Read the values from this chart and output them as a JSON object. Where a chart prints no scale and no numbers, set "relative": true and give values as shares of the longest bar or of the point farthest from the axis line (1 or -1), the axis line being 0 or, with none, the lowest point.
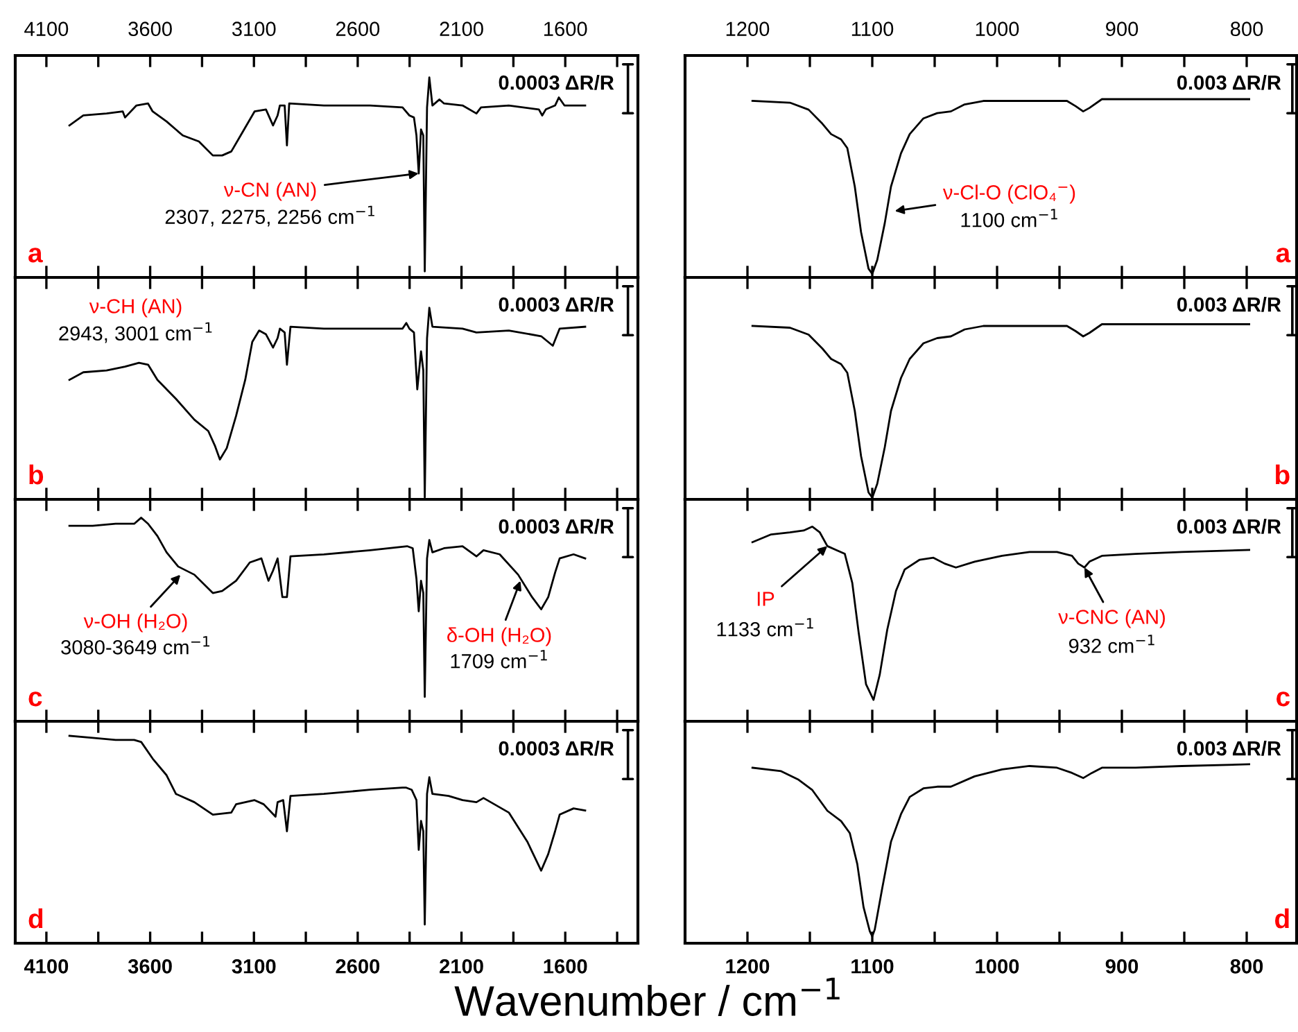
{
  "chart_data": [
    {
      "type": "line",
      "relative": true,
      "tick_labels": "x",
      "xlim": [
        4250,
        1250
      ],
      "xticks": [
        4100,
        {
          "value": 3850,
          "label": null
        },
        3600,
        {
          "value": 3350,
          "label": null
        },
        3100,
        {
          "value": 2850,
          "label": null
        },
        2600,
        {
          "value": 2350,
          "label": null
        },
        2100,
        {
          "value": 1850,
          "label": null
        },
        1600,
        {
          "value": 1350,
          "label": null
        }
      ],
      "x": [
        3989,
        3922,
        3810,
        3732,
        3721,
        3666,
        3610,
        3588,
        3521,
        3443,
        3365,
        3298,
        3253,
        3209,
        3164,
        3097,
        3042,
        3008,
        2986,
        2975,
        2952,
        2941,
        2930,
        2763,
        2540,
        2384,
        2351,
        2329,
        2317,
        2306,
        2295,
        2284,
        2277,
        2266,
        2255,
        2240,
        2206,
        2184,
        2095,
        2028,
        2006,
        1872,
        1727,
        1711,
        1694,
        1649,
        1631,
        1604,
        1504
      ],
      "series": [
        {
          "color": "#000000",
          "values": [
            0.76,
            0.81,
            0.82,
            0.83,
            0.8,
            0.86,
            0.87,
            0.83,
            0.78,
            0.71,
            0.68,
            0.61,
            0.61,
            0.63,
            0.71,
            0.83,
            0.84,
            0.76,
            0.81,
            0.86,
            0.86,
            0.66,
            0.87,
            0.86,
            0.86,
            0.85,
            0.81,
            0.8,
            0.71,
            0.52,
            0.74,
            0.71,
            0.03,
            0.85,
            1,
            0.86,
            0.89,
            0.87,
            0.86,
            0.82,
            0.85,
            0.86,
            0.84,
            0.81,
            0.84,
            0.86,
            0.9,
            0.86,
            0.86
          ]
        }
      ],
      "annotations": [
        "0.0003 ΔR/R",
        "a",
        {
          "text": "ν-CN (AN)",
          "x": 2306,
          "y": 0.52
        },
        "2307, 2275, 2256 cm$^{−1}$"
      ]
    },
    {
      "type": "line",
      "relative": true,
      "tick_labels": "x",
      "xlim": [
        1250,
        760
      ],
      "xticks": [
        1200,
        {
          "value": 1150,
          "label": null
        },
        1100,
        {
          "value": 1050,
          "label": null
        },
        1000,
        {
          "value": 950,
          "label": null
        },
        900,
        {
          "value": 850,
          "label": null
        },
        800
      ],
      "x": [
        1196,
        1166,
        1151,
        1140,
        1133,
        1125,
        1120,
        1114,
        1109,
        1103,
        1100,
        1096,
        1090,
        1085,
        1077,
        1070,
        1059,
        1048,
        1037,
        1026,
        1011,
        981,
        955,
        944,
        937,
        931,
        926,
        916,
        889,
        852,
        798
      ],
      "series": [
        {
          "color": "#000000",
          "values": [
            0.99,
            0.98,
            0.94,
            0.86,
            0.8,
            0.77,
            0.72,
            0.5,
            0.24,
            0.03,
            0,
            0.08,
            0.29,
            0.5,
            0.69,
            0.8,
            0.89,
            0.92,
            0.93,
            0.97,
            0.99,
            0.99,
            0.99,
            0.99,
            0.96,
            0.93,
            0.95,
            1,
            1,
            1,
            1
          ]
        }
      ],
      "annotations": [
        "0.003 ΔR/R",
        "a",
        {
          "text": "ν-Cl-O (ClO₄$^{−}$)",
          "x": 1082,
          "y": 0.36
        },
        "1100 cm$^{−1}$"
      ]
    },
    {
      "type": "line",
      "relative": true,
      "tick_labels": false,
      "xlim": [
        4250,
        1250
      ],
      "xticks": [
        4100,
        3850,
        3600,
        3350,
        3100,
        2850,
        2600,
        2350,
        2100,
        1850,
        1600,
        1350
      ],
      "x": [
        3989,
        3922,
        3810,
        3721,
        3654,
        3610,
        3565,
        3476,
        3387,
        3320,
        3287,
        3264,
        3231,
        3186,
        3142,
        3108,
        3075,
        3042,
        3008,
        2986,
        2975,
        2952,
        2941,
        2924,
        2763,
        2540,
        2384,
        2366,
        2351,
        2329,
        2313,
        2295,
        2284,
        2277,
        2266,
        2255,
        2240,
        2095,
        2028,
        1872,
        1716,
        1660,
        1627,
        1504
      ],
      "series": [
        {
          "color": "#000000",
          "values": [
            0.62,
            0.66,
            0.67,
            0.69,
            0.71,
            0.7,
            0.62,
            0.52,
            0.41,
            0.35,
            0.27,
            0.2,
            0.26,
            0.43,
            0.62,
            0.82,
            0.88,
            0.86,
            0.79,
            0.84,
            0.89,
            0.87,
            0.7,
            0.9,
            0.89,
            0.89,
            0.89,
            0.92,
            0.89,
            0.87,
            0.57,
            0.77,
            0.67,
            0,
            0.84,
            1,
            0.9,
            0.89,
            0.87,
            0.88,
            0.85,
            0.8,
            0.89,
            0.9
          ]
        }
      ],
      "annotations": [
        "0.0003 ΔR/R",
        "b",
        "ν-CH (AN)",
        "2943, 3001 cm$^{−1}$"
      ]
    },
    {
      "type": "line",
      "relative": true,
      "tick_labels": false,
      "xlim": [
        1250,
        760
      ],
      "xticks": [
        1200,
        1150,
        1100,
        1050,
        1000,
        950,
        900,
        850,
        800
      ],
      "x": [
        1196,
        1166,
        1151,
        1140,
        1133,
        1125,
        1120,
        1114,
        1109,
        1103,
        1100,
        1096,
        1090,
        1085,
        1077,
        1070,
        1059,
        1048,
        1037,
        1026,
        1011,
        981,
        955,
        944,
        937,
        931,
        926,
        916,
        889,
        852,
        798
      ],
      "series": [
        {
          "color": "#000000",
          "values": [
            0.99,
            0.98,
            0.94,
            0.86,
            0.8,
            0.77,
            0.72,
            0.5,
            0.24,
            0.03,
            0,
            0.08,
            0.29,
            0.5,
            0.69,
            0.8,
            0.89,
            0.92,
            0.93,
            0.97,
            0.99,
            0.99,
            0.99,
            0.99,
            0.96,
            0.93,
            0.95,
            1,
            1,
            1,
            1
          ]
        }
      ],
      "annotations": [
        "0.003 ΔR/R",
        "b"
      ]
    },
    {
      "type": "line",
      "relative": true,
      "tick_labels": false,
      "xlim": [
        4250,
        1250
      ],
      "xticks": [
        4100,
        3850,
        3600,
        3350,
        3100,
        2850,
        2600,
        2350,
        2100,
        1850,
        1600,
        1350
      ],
      "x": [
        3989,
        3877,
        3766,
        3677,
        3643,
        3610,
        3565,
        3521,
        3465,
        3387,
        3298,
        3253,
        3186,
        3120,
        3064,
        3030,
        3008,
        2986,
        2963,
        2941,
        2924,
        2763,
        2540,
        2362,
        2335,
        2317,
        2306,
        2295,
        2284,
        2277,
        2266,
        2255,
        2240,
        2184,
        2095,
        2028,
        1994,
        1916,
        1827,
        1760,
        1716,
        1682,
        1649,
        1627,
        1560,
        1504
      ],
      "series": [
        {
          "color": "#000000",
          "values": [
            0.96,
            0.96,
            0.97,
            0.97,
            1,
            0.97,
            0.91,
            0.83,
            0.76,
            0.72,
            0.63,
            0.64,
            0.69,
            0.78,
            0.8,
            0.69,
            0.74,
            0.8,
            0.61,
            0.61,
            0.81,
            0.82,
            0.84,
            0.86,
            0.85,
            0.7,
            0.54,
            0.69,
            0.63,
            0.12,
            0.8,
            0.89,
            0.83,
            0.85,
            0.86,
            0.81,
            0.84,
            0.82,
            0.72,
            0.61,
            0.55,
            0.61,
            0.73,
            0.8,
            0.82,
            0.8
          ]
        }
      ],
      "annotations": [
        "0.0003 ΔR/R",
        "c",
        {
          "text": "ν-OH (H₂O)",
          "x": 3454,
          "y": 0.72
        },
        "3080-3649 cm$^{−1}$",
        {
          "text": "δ-OH (H₂O)",
          "x": 1816,
          "y": 0.69
        },
        "1709 cm$^{−1}$"
      ]
    },
    {
      "type": "line",
      "relative": true,
      "tick_labels": false,
      "xlim": [
        1250,
        760
      ],
      "xticks": [
        1200,
        1150,
        1100,
        1050,
        1000,
        950,
        900,
        850,
        800
      ],
      "x": [
        1196,
        1181,
        1166,
        1155,
        1148,
        1142,
        1136,
        1129,
        1122,
        1116,
        1111,
        1105,
        1099,
        1094,
        1088,
        1081,
        1074,
        1062,
        1051,
        1042,
        1033,
        1018,
        996,
        974,
        952,
        940,
        935,
        930,
        926,
        916,
        889,
        852,
        798
      ],
      "series": [
        {
          "color": "#000000",
          "values": [
            0.92,
            0.96,
            0.97,
            0.98,
            1,
            0.97,
            0.9,
            0.88,
            0.86,
            0.71,
            0.46,
            0.19,
            0.11,
            0.24,
            0.47,
            0.67,
            0.78,
            0.83,
            0.84,
            0.81,
            0.79,
            0.82,
            0.85,
            0.87,
            0.87,
            0.85,
            0.81,
            0.79,
            0.82,
            0.85,
            0.86,
            0.87,
            0.88
          ]
        }
      ],
      "annotations": [
        "0.003 ΔR/R",
        "c",
        {
          "text": "IP",
          "x": 1136,
          "y": 0.9
        },
        "1133 cm$^{−1}$",
        {
          "text": "ν-CNC (AN)",
          "x": 930,
          "y": 0.79
        },
        "932 cm$^{−1}$"
      ]
    },
    {
      "type": "line",
      "relative": true,
      "tick_labels": "x",
      "xlim": [
        4250,
        1250
      ],
      "xticks": [
        4100,
        {
          "value": 3850,
          "label": null
        },
        3600,
        {
          "value": 3350,
          "label": null
        },
        3100,
        {
          "value": 2850,
          "label": null
        },
        2600,
        {
          "value": 2350,
          "label": null
        },
        2100,
        {
          "value": 1850,
          "label": null
        },
        1600,
        {
          "value": 1350,
          "label": null
        }
      ],
      "xlabel": "Wavenumber / cm$^{−1}$",
      "x": [
        3989,
        3877,
        3766,
        3677,
        3643,
        3588,
        3521,
        3476,
        3387,
        3298,
        3209,
        3186,
        3097,
        3053,
        2996,
        2986,
        2959,
        2941,
        2924,
        2763,
        2540,
        2384,
        2366,
        2340,
        2317,
        2306,
        2295,
        2284,
        2277,
        2266,
        2255,
        2240,
        2162,
        2095,
        2028,
        1994,
        1872,
        1783,
        1716,
        1682,
        1649,
        1627,
        1560,
        1504
      ],
      "series": [
        {
          "color": "#000000",
          "values": [
            1,
            0.99,
            0.98,
            0.98,
            0.97,
            0.89,
            0.81,
            0.72,
            0.68,
            0.62,
            0.63,
            0.67,
            0.69,
            0.67,
            0.61,
            0.68,
            0.69,
            0.54,
            0.71,
            0.72,
            0.74,
            0.75,
            0.75,
            0.74,
            0.69,
            0.45,
            0.59,
            0.54,
            0.09,
            0.72,
            0.8,
            0.72,
            0.71,
            0.69,
            0.68,
            0.7,
            0.63,
            0.49,
            0.35,
            0.43,
            0.54,
            0.62,
            0.65,
            0.64
          ]
        }
      ],
      "annotations": [
        "0.0003 ΔR/R",
        "d"
      ]
    },
    {
      "type": "line",
      "relative": true,
      "tick_labels": "x",
      "xlim": [
        1250,
        760
      ],
      "xticks": [
        1200,
        {
          "value": 1150,
          "label": null
        },
        1100,
        {
          "value": 1050,
          "label": null
        },
        1000,
        {
          "value": 950,
          "label": null
        },
        900,
        {
          "value": 850,
          "label": null
        },
        800
      ],
      "x": [
        1196,
        1173,
        1159,
        1148,
        1136,
        1125,
        1118,
        1112,
        1107,
        1102,
        1100,
        1098,
        1092,
        1085,
        1077,
        1070,
        1059,
        1048,
        1037,
        1018,
        996,
        974,
        952,
        940,
        931,
        924,
        916,
        889,
        852,
        798
      ],
      "series": [
        {
          "color": "#000000",
          "values": [
            0.98,
            0.96,
            0.91,
            0.85,
            0.73,
            0.67,
            0.6,
            0.42,
            0.17,
            0.03,
            0,
            0.04,
            0.28,
            0.55,
            0.71,
            0.81,
            0.86,
            0.87,
            0.87,
            0.93,
            0.97,
            0.99,
            0.98,
            0.95,
            0.92,
            0.95,
            0.98,
            0.98,
            0.99,
            1
          ]
        }
      ],
      "annotations": [
        "0.003 ΔR/R",
        "d"
      ]
    }
  ]
}
